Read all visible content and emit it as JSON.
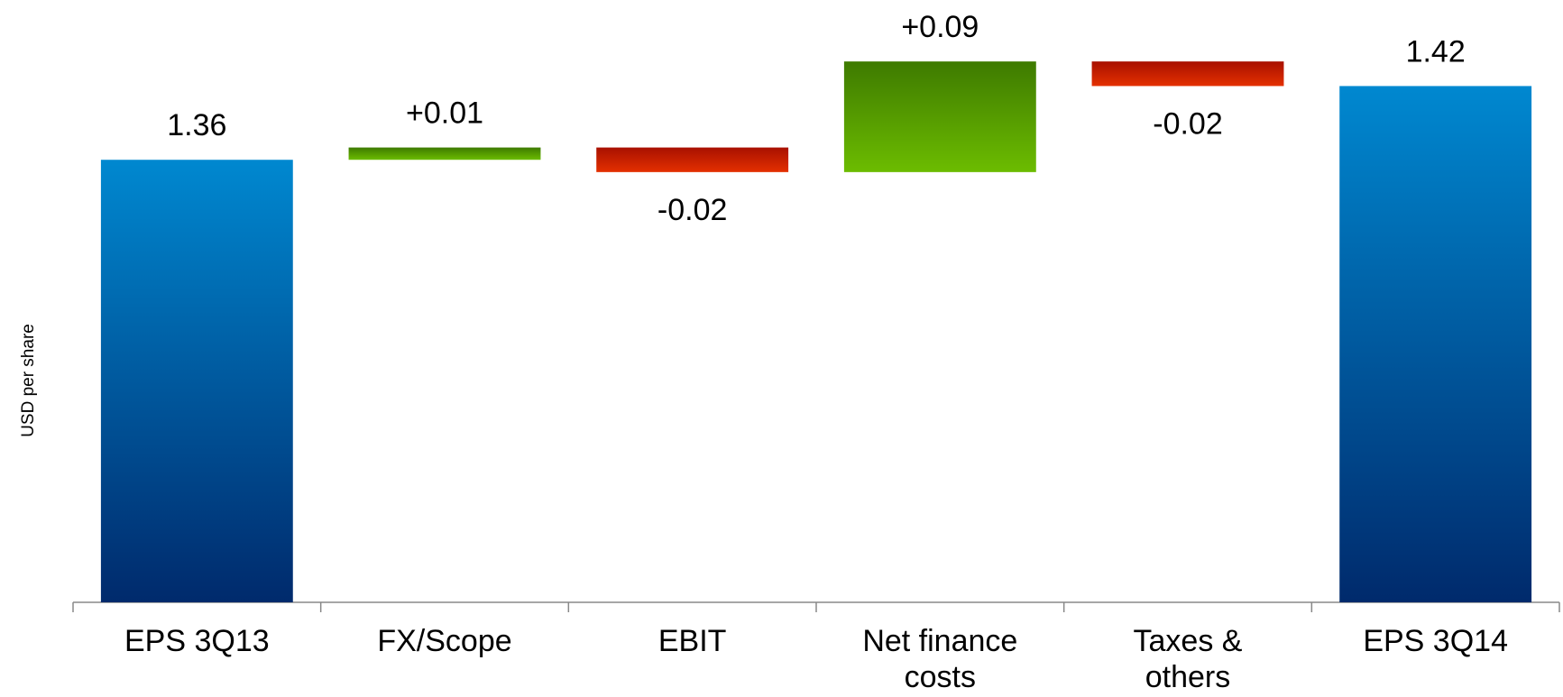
{
  "chart_data": {
    "type": "waterfall",
    "y_label": "USD per share",
    "categories": [
      "EPS 3Q13",
      "FX/Scope",
      "EBIT",
      "Net finance costs",
      "Taxes & others",
      "EPS 3Q14"
    ],
    "values": [
      1.36,
      0.01,
      -0.02,
      0.09,
      -0.02,
      1.42
    ],
    "value_labels": [
      "1.36",
      "+0.01",
      "-0.02",
      "+0.09",
      "-0.02",
      "1.42"
    ],
    "measure": [
      "absolute",
      "relative",
      "relative",
      "relative",
      "relative",
      "absolute"
    ],
    "colors": {
      "total": [
        "#0088d0",
        "#002a6c"
      ],
      "increase": [
        "#3e7a00",
        "#6cbc00"
      ],
      "decrease": [
        "#a81000",
        "#e43000"
      ]
    },
    "ylim": [
      1.0,
      1.49
    ]
  }
}
